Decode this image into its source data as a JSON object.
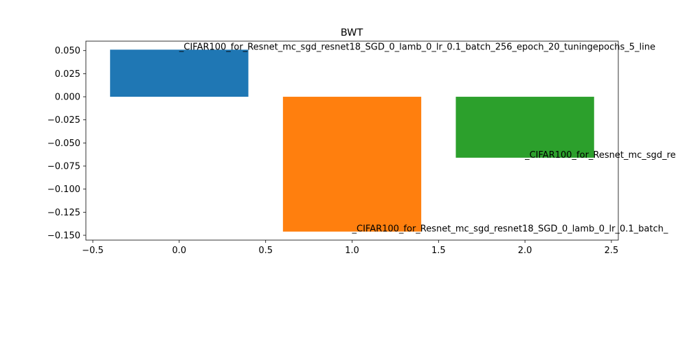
{
  "chart_data": {
    "type": "bar",
    "title": "BWT",
    "xlabel": "",
    "ylabel": "",
    "xlim": [
      -0.54,
      2.54
    ],
    "ylim": [
      -0.1552,
      0.0602
    ],
    "bar_width": 0.8,
    "x": [
      0,
      1,
      2
    ],
    "values": [
      0.051,
      -0.146,
      -0.066
    ],
    "colors": [
      "#1f77b4",
      "#ff7f0e",
      "#2ca02c"
    ],
    "bar_labels": [
      "_CIFAR100_for_Resnet_mc_sgd_resnet18_SGD_0_lamb_0_lr_0.1_batch_256_epoch_20_tuningepochs_5_line",
      "_CIFAR100_for_Resnet_mc_sgd_resnet18_SGD_0_lamb_0_lr_0.1_batch_",
      "_CIFAR100_for_Resnet_mc_sgd_re"
    ],
    "xticks": [
      -0.5,
      0.0,
      0.5,
      1.0,
      1.5,
      2.0,
      2.5
    ],
    "xtick_labels": [
      "−0.5",
      "0.0",
      "0.5",
      "1.0",
      "1.5",
      "2.0",
      "2.5"
    ],
    "yticks": [
      0.05,
      0.025,
      0.0,
      -0.025,
      -0.05,
      -0.075,
      -0.1,
      -0.125,
      -0.15
    ],
    "ytick_labels": [
      "0.050",
      "0.025",
      "0.000",
      "−0.025",
      "−0.050",
      "−0.075",
      "−0.100",
      "−0.125",
      "−0.150"
    ],
    "grid": false,
    "legend": "none"
  }
}
